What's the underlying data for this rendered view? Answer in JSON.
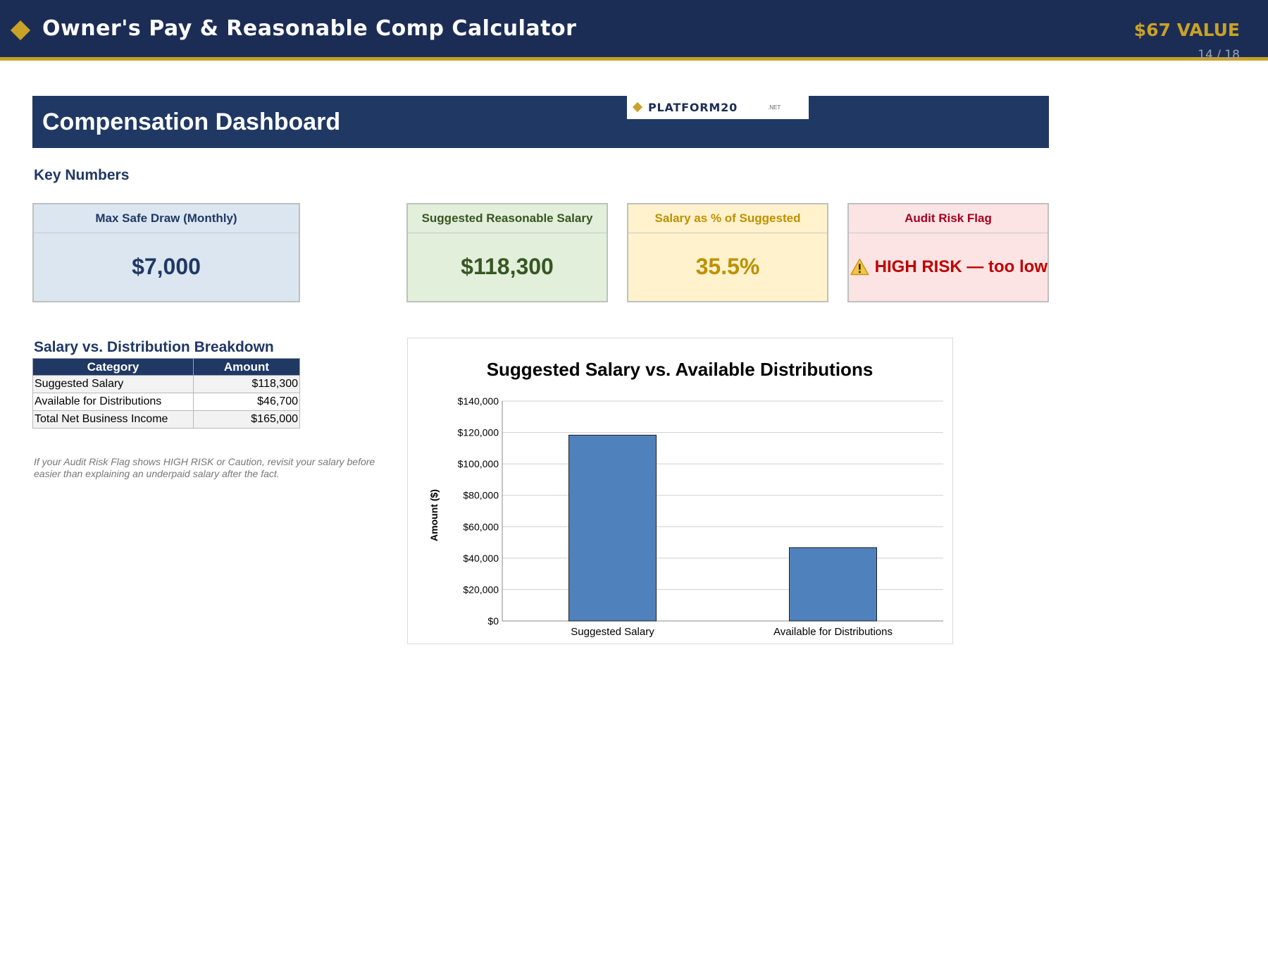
{
  "header": {
    "title": "Owner's Pay & Reasonable Comp Calculator",
    "value_badge": "$67 VALUE",
    "page_indicator": "14 / 18"
  },
  "dashboard": {
    "title": "Compensation Dashboard",
    "logo_text": "PLATFORM20",
    "logo_suffix": ".NET"
  },
  "key_numbers": {
    "heading": "Key Numbers",
    "cards": [
      {
        "label": "Max Safe Draw (Monthly)",
        "value": "$7,000"
      },
      {
        "label": "Suggested Reasonable Salary",
        "value": "$118,300"
      },
      {
        "label": "Salary as % of Suggested",
        "value": "35.5%"
      },
      {
        "label": "Audit Risk Flag",
        "value": "HIGH RISK — too low",
        "icon": "warning-icon"
      }
    ]
  },
  "breakdown": {
    "heading": "Salary vs. Distribution Breakdown",
    "columns": [
      "Category",
      "Amount"
    ],
    "rows": [
      [
        "Suggested Salary",
        "$118,300"
      ],
      [
        "Available for Distributions",
        "$46,700"
      ],
      [
        "Total Net Business Income",
        "$165,000"
      ]
    ]
  },
  "note": {
    "line1": "If your Audit Risk Flag shows HIGH RISK or Caution, revisit your salary before",
    "line2": "easier than explaining an underpaid salary after the fact."
  },
  "colors": {
    "navy": "#1c2d55",
    "gold": "#c9a227",
    "bar": "#4f81bd"
  },
  "chart_data": {
    "type": "bar",
    "title": "Suggested Salary vs. Available Distributions",
    "categories": [
      "Suggested Salary",
      "Available for Distributions"
    ],
    "values": [
      118300,
      46700
    ],
    "xlabel": "",
    "ylabel": "Amount ($)",
    "ylim": [
      0,
      140000
    ],
    "yticks": [
      "$0",
      "$20,000",
      "$40,000",
      "$60,000",
      "$80,000",
      "$100,000",
      "$120,000",
      "$140,000"
    ],
    "grid": true,
    "legend": "none"
  }
}
